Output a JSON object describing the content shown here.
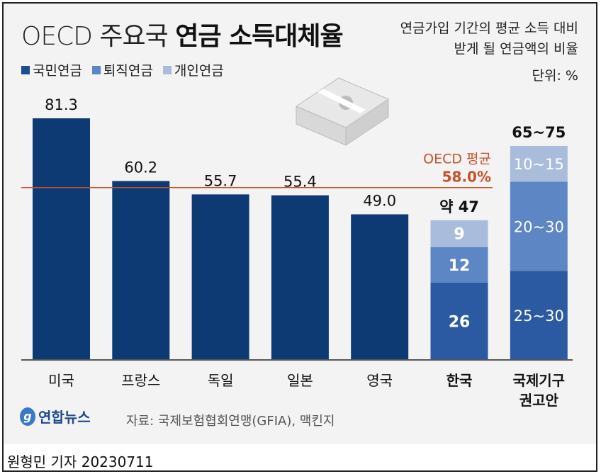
{
  "title": {
    "light": "OECD 주요국",
    "bold": "연금 소득대체율"
  },
  "subtitle": [
    "연금가입 기간의 평균 소득 대비",
    "받게 될 연금액의 비율"
  ],
  "unit": "단위: %",
  "source": "자료: 국제보험협회연맹(GFIA), 맥킨지",
  "logo": "연합뉴스",
  "byline": "원형민 기자  20230711",
  "colors": {
    "national": "#0d3a73",
    "national_korea": "#2c5aa2",
    "retirement": "#5c86c4",
    "personal": "#aabcdc",
    "oecd_line": "#c8502a"
  },
  "chart_data": {
    "type": "bar",
    "stacked": true,
    "legend": [
      "국민연금",
      "퇴직연금",
      "개인연금"
    ],
    "legend_position": "top-left",
    "categories": [
      "미국",
      "프랑스",
      "독일",
      "일본",
      "영국",
      "한국",
      "국제기구 권고안"
    ],
    "highlight_categories": [
      "한국",
      "국제기구 권고안"
    ],
    "series": [
      {
        "name": "국민연금",
        "values": [
          81.3,
          60.2,
          55.7,
          55.4,
          49.0,
          26,
          30
        ],
        "labels": [
          "",
          "",
          "",
          "",
          "",
          "26",
          "25~30"
        ]
      },
      {
        "name": "퇴직연금",
        "values": [
          0,
          0,
          0,
          0,
          0,
          12,
          30
        ],
        "labels": [
          "",
          "",
          "",
          "",
          "",
          "12",
          "20~30"
        ]
      },
      {
        "name": "개인연금",
        "values": [
          0,
          0,
          0,
          0,
          0,
          9,
          12
        ],
        "labels": [
          "",
          "",
          "",
          "",
          "",
          "9",
          "10~15"
        ]
      }
    ],
    "total_labels": [
      "81.3",
      "60.2",
      "55.7",
      "55.4",
      "49.0",
      "약 47",
      "65~75"
    ],
    "reference_line": {
      "value": 58.0,
      "label": "OECD 평균",
      "value_label": "58.0%"
    },
    "ylim": [
      0,
      81.3
    ],
    "grid": false
  }
}
